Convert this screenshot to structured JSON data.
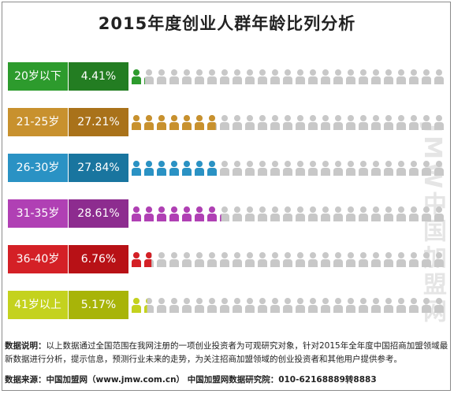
{
  "title": "2015年度创业人群年龄比列分析",
  "watermark": "JMW中国加盟网",
  "chart_data": {
    "type": "pictograph",
    "title": "2015年度创业人群年龄比列分析",
    "categories": [
      "20岁以下",
      "21-25岁",
      "26-30岁",
      "31-35岁",
      "36-40岁",
      "41岁以上"
    ],
    "values": [
      4.41,
      27.21,
      27.84,
      28.61,
      6.76,
      5.17
    ],
    "value_labels": [
      "4.41%",
      "27.21%",
      "27.84%",
      "28.61%",
      "6.76%",
      "5.17%"
    ],
    "unit_per_icon": "%",
    "total_icons": 25,
    "label_colors": [
      "#2d9b2d",
      "#c8912e",
      "#2a92c4",
      "#b040b4",
      "#d42026",
      "#c4d21e"
    ],
    "value_colors": [
      "#237d22",
      "#a9721a",
      "#19759f",
      "#8d2c8f",
      "#b81116",
      "#a8b408"
    ],
    "empty_icon_color": "#c8c8c8"
  },
  "footer": {
    "note_label": "数据说明：",
    "note_text": "以上数据通过全国范围在我网注册的一项创业投资者为可观研究对象，针对2015年全年度中国招商加盟领域最新数据进行分析，提示信息，预测行业未来的走势，为关注招商加盟领域的创业投资者和其他用户提供参考。",
    "source_label": "数据来源：",
    "source_text": "中国加盟网（www.jmw.com.cn）    中国加盟网数据研究院：010-62168889转8883"
  }
}
